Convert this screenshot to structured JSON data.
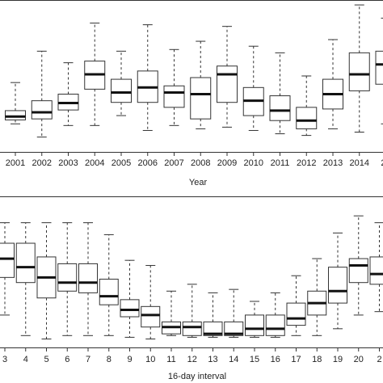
{
  "chart_data": [
    {
      "type": "boxplot",
      "xlabel": "Year",
      "ylabel": "",
      "title": "",
      "grid": false,
      "categories": [
        "2001",
        "2002",
        "2003",
        "2004",
        "2005",
        "2006",
        "2007",
        "2008",
        "2009",
        "2010",
        "2011",
        "2012",
        "2013",
        "2014",
        "20"
      ],
      "boxes": [
        {
          "min": 0.8,
          "q1": 0.92,
          "median": 1.02,
          "q3": 1.2,
          "max": 2.05
        },
        {
          "min": 0.4,
          "q1": 0.95,
          "median": 1.15,
          "q3": 1.5,
          "max": 3.0
        },
        {
          "min": 0.75,
          "q1": 1.22,
          "median": 1.43,
          "q3": 1.7,
          "max": 2.65
        },
        {
          "min": 0.75,
          "q1": 1.85,
          "median": 2.3,
          "q3": 2.7,
          "max": 3.85
        },
        {
          "min": 1.05,
          "q1": 1.45,
          "median": 1.75,
          "q3": 2.15,
          "max": 3.0
        },
        {
          "min": 0.6,
          "q1": 1.45,
          "median": 1.9,
          "q3": 2.4,
          "max": 3.8
        },
        {
          "min": 0.75,
          "q1": 1.3,
          "median": 1.75,
          "q3": 1.95,
          "max": 3.05
        },
        {
          "min": 0.65,
          "q1": 0.95,
          "median": 1.7,
          "q3": 2.2,
          "max": 3.3
        },
        {
          "min": 0.7,
          "q1": 1.45,
          "median": 2.3,
          "q3": 2.55,
          "max": 3.75
        },
        {
          "min": 0.6,
          "q1": 1.05,
          "median": 1.5,
          "q3": 1.9,
          "max": 3.15
        },
        {
          "min": 0.5,
          "q1": 0.9,
          "median": 1.2,
          "q3": 1.65,
          "max": 2.95
        },
        {
          "min": 0.45,
          "q1": 0.65,
          "median": 0.9,
          "q3": 1.3,
          "max": 2.25
        },
        {
          "min": 0.65,
          "q1": 1.25,
          "median": 1.7,
          "q3": 2.15,
          "max": 3.35
        },
        {
          "min": 0.55,
          "q1": 1.8,
          "median": 2.3,
          "q3": 2.95,
          "max": 4.4
        },
        {
          "min": 0.8,
          "q1": 2.0,
          "median": 2.6,
          "q3": 3.0,
          "max": 4.0
        }
      ],
      "ylim": [
        0,
        4.5
      ]
    },
    {
      "type": "boxplot",
      "xlabel": "16-day interval",
      "ylabel": "",
      "title": "",
      "grid": false,
      "categories": [
        "3",
        "4",
        "5",
        "6",
        "7",
        "8",
        "9",
        "10",
        "11",
        "12",
        "13",
        "14",
        "15",
        "16",
        "17",
        "18",
        "19",
        "20",
        "2"
      ],
      "boxes": [
        {
          "min": 0.9,
          "q1": 2.0,
          "median": 2.55,
          "q3": 3.0,
          "max": 3.6
        },
        {
          "min": 0.3,
          "q1": 1.85,
          "median": 2.3,
          "q3": 3.0,
          "max": 3.6
        },
        {
          "min": 0.2,
          "q1": 1.4,
          "median": 2.0,
          "q3": 2.6,
          "max": 3.6
        },
        {
          "min": 0.3,
          "q1": 1.6,
          "median": 1.85,
          "q3": 2.4,
          "max": 3.6
        },
        {
          "min": 0.3,
          "q1": 1.55,
          "median": 1.85,
          "q3": 2.4,
          "max": 3.6
        },
        {
          "min": 0.3,
          "q1": 1.2,
          "median": 1.45,
          "q3": 1.95,
          "max": 3.25
        },
        {
          "min": 0.25,
          "q1": 0.85,
          "median": 1.05,
          "q3": 1.35,
          "max": 2.5
        },
        {
          "min": 0.2,
          "q1": 0.55,
          "median": 0.9,
          "q3": 1.15,
          "max": 2.35
        },
        {
          "min": 0.3,
          "q1": 0.35,
          "median": 0.55,
          "q3": 0.7,
          "max": 1.6
        },
        {
          "min": 0.25,
          "q1": 0.3,
          "median": 0.55,
          "q3": 0.7,
          "max": 1.8
        },
        {
          "min": 0.25,
          "q1": 0.3,
          "median": 0.35,
          "q3": 0.7,
          "max": 1.55
        },
        {
          "min": 0.25,
          "q1": 0.3,
          "median": 0.35,
          "q3": 0.7,
          "max": 1.65
        },
        {
          "min": 0.25,
          "q1": 0.3,
          "median": 0.5,
          "q3": 0.9,
          "max": 1.3
        },
        {
          "min": 0.25,
          "q1": 0.3,
          "median": 0.5,
          "q3": 0.9,
          "max": 1.55
        },
        {
          "min": 0.3,
          "q1": 0.6,
          "median": 0.8,
          "q3": 1.25,
          "max": 2.05
        },
        {
          "min": 0.3,
          "q1": 0.9,
          "median": 1.25,
          "q3": 1.6,
          "max": 2.55
        },
        {
          "min": 0.5,
          "q1": 1.25,
          "median": 1.6,
          "q3": 2.3,
          "max": 3.3
        },
        {
          "min": 0.9,
          "q1": 1.85,
          "median": 2.35,
          "q3": 2.55,
          "max": 3.8
        },
        {
          "min": 1.0,
          "q1": 1.8,
          "median": 2.1,
          "q3": 2.6,
          "max": 3.6
        }
      ],
      "ylim": [
        0,
        4.3
      ]
    }
  ],
  "colors": {
    "box_stroke": "#333333",
    "median": "#111111",
    "axis": "#333333"
  }
}
